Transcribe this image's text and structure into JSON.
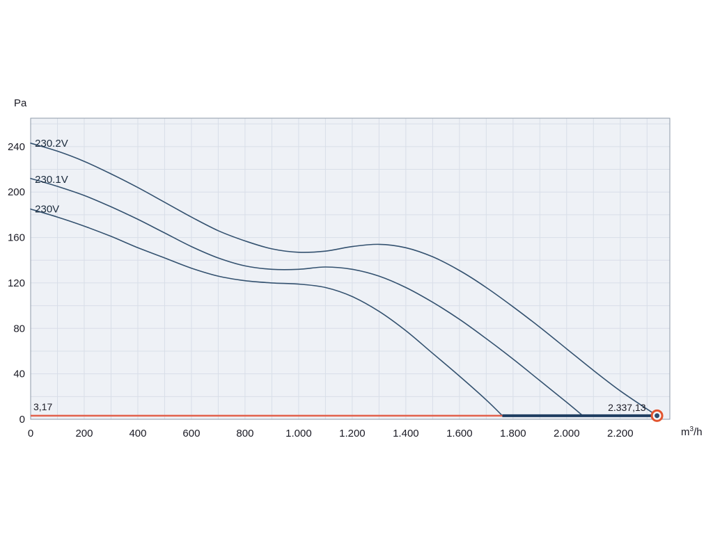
{
  "chart_data": {
    "type": "line",
    "title": "",
    "ylabel": "Pa",
    "xlabel_base": "m",
    "xlabel_sup": "3",
    "xlabel_rest": "/h",
    "xlim": [
      0,
      2385
    ],
    "ylim": [
      0,
      265
    ],
    "x_major_ticks": [
      0,
      200,
      400,
      600,
      800,
      1000,
      1200,
      1400,
      1600,
      1800,
      2000,
      2200
    ],
    "x_tick_labels": [
      "0",
      "200",
      "400",
      "600",
      "800",
      "1.000",
      "1.200",
      "1.400",
      "1.600",
      "1.800",
      "2.000",
      "2.200"
    ],
    "x_minor_step": 100,
    "y_major_ticks": [
      0,
      40,
      80,
      120,
      160,
      200,
      240
    ],
    "y_tick_labels": [
      "0",
      "40",
      "80",
      "120",
      "160",
      "200",
      "240"
    ],
    "y_minor_step": 20,
    "grid": true,
    "legend_position": "inline-labels",
    "series": [
      {
        "name": "230.2V",
        "label_x": 16,
        "label_y": 240,
        "points": [
          [
            0,
            243
          ],
          [
            100,
            236
          ],
          [
            200,
            227
          ],
          [
            300,
            216
          ],
          [
            400,
            204
          ],
          [
            500,
            191
          ],
          [
            600,
            178
          ],
          [
            700,
            166
          ],
          [
            800,
            157
          ],
          [
            900,
            150
          ],
          [
            1000,
            147
          ],
          [
            1100,
            148
          ],
          [
            1200,
            152
          ],
          [
            1300,
            154
          ],
          [
            1400,
            151
          ],
          [
            1500,
            143
          ],
          [
            1600,
            131
          ],
          [
            1700,
            116
          ],
          [
            1800,
            99
          ],
          [
            1900,
            81
          ],
          [
            2000,
            62
          ],
          [
            2100,
            43
          ],
          [
            2200,
            25
          ],
          [
            2300,
            9
          ],
          [
            2337,
            3.2
          ]
        ]
      },
      {
        "name": "230.1V",
        "label_x": 16,
        "label_y": 208,
        "points": [
          [
            0,
            212
          ],
          [
            100,
            205
          ],
          [
            200,
            197
          ],
          [
            300,
            187
          ],
          [
            400,
            176
          ],
          [
            500,
            164
          ],
          [
            600,
            152
          ],
          [
            700,
            142
          ],
          [
            800,
            135
          ],
          [
            900,
            132
          ],
          [
            1000,
            132
          ],
          [
            1100,
            134
          ],
          [
            1200,
            132
          ],
          [
            1300,
            126
          ],
          [
            1400,
            116
          ],
          [
            1500,
            103
          ],
          [
            1600,
            88
          ],
          [
            1700,
            71
          ],
          [
            1800,
            53
          ],
          [
            1900,
            34
          ],
          [
            2000,
            15
          ],
          [
            2060,
            3.2
          ]
        ]
      },
      {
        "name": "230V",
        "label_x": 16,
        "label_y": 182,
        "points": [
          [
            0,
            185
          ],
          [
            100,
            178
          ],
          [
            200,
            170
          ],
          [
            300,
            161
          ],
          [
            400,
            151
          ],
          [
            500,
            142
          ],
          [
            600,
            133
          ],
          [
            700,
            126
          ],
          [
            800,
            122
          ],
          [
            900,
            120
          ],
          [
            1000,
            119
          ],
          [
            1100,
            116
          ],
          [
            1200,
            108
          ],
          [
            1300,
            95
          ],
          [
            1400,
            78
          ],
          [
            1500,
            58
          ],
          [
            1600,
            38
          ],
          [
            1700,
            17
          ],
          [
            1760,
            3.2
          ]
        ]
      }
    ],
    "working_line": {
      "y": 3.17,
      "red_segment": [
        0,
        1760
      ],
      "blue_segment": [
        1760,
        2337.13
      ]
    },
    "operating_point": {
      "x": 2337.13,
      "y": 3.17,
      "x_label": "2.337,13",
      "y_label": "3,17"
    }
  },
  "colors": {
    "curve": "#33516f",
    "curve_label": "#1a2a3c",
    "plot_bg": "#eef1f6",
    "grid_line": "#d8dee8",
    "plot_border": "#8d99a8",
    "tick_text": "#1a1a24",
    "red_line": "#e2604b",
    "blue_line": "#1f3e61",
    "marker_ring": "#e2552f",
    "marker_core": "#2e4d6e",
    "annotation_text": "#1a1a24"
  }
}
